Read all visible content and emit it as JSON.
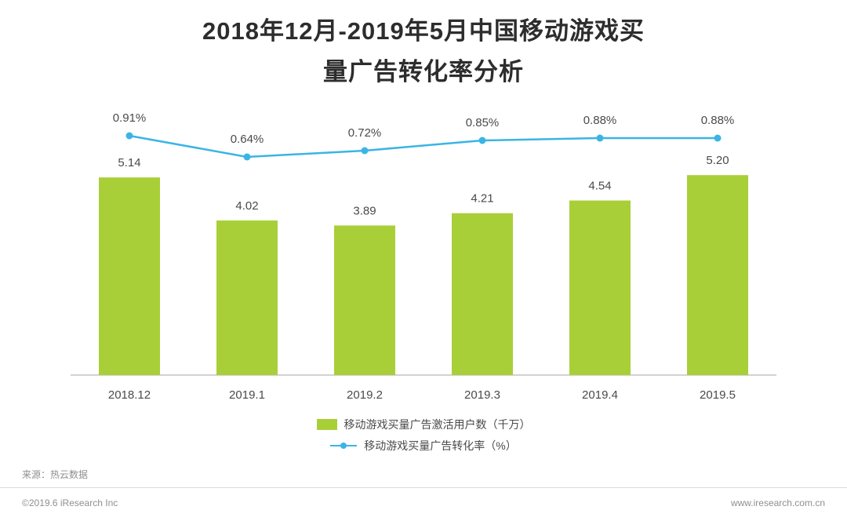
{
  "title": {
    "line1": "2018年12月-2019年5月中国移动游戏买",
    "line2": "量广告转化率分析"
  },
  "chart_data": {
    "type": "bar",
    "title": "2018年12月-2019年5月中国移动游戏买量广告转化率分析",
    "categories": [
      "2018.12",
      "2019.1",
      "2019.2",
      "2019.3",
      "2019.4",
      "2019.5"
    ],
    "series": [
      {
        "name": "移动游戏买量广告激活用户数（千万）",
        "type": "bar",
        "values": [
          5.14,
          4.02,
          3.89,
          4.21,
          4.54,
          5.2
        ],
        "labels": [
          "5.14",
          "4.02",
          "3.89",
          "4.21",
          "4.54",
          "5.20"
        ],
        "color": "#a9cf38"
      },
      {
        "name": "移动游戏买量广告转化率（%）",
        "type": "line",
        "values": [
          0.91,
          0.64,
          0.72,
          0.85,
          0.88,
          0.88
        ],
        "labels": [
          "0.91%",
          "0.64%",
          "0.72%",
          "0.85%",
          "0.88%",
          "0.88%"
        ],
        "color": "#3bb4e5"
      }
    ],
    "xlabel": "",
    "ylabel": "",
    "grid": false,
    "legend_position": "bottom"
  },
  "legend": {
    "bar_label": "移动游戏买量广告激活用户数（千万）",
    "line_label": "移动游戏买量广告转化率（%）"
  },
  "footer": {
    "source": "来源：热云数据",
    "copyright": "©2019.6 iResearch Inc",
    "website": "www.iresearch.com.cn"
  },
  "colors": {
    "bar": "#a9cf38",
    "line": "#3bb4e5",
    "axis": "#a6a6a6",
    "label": "#4a4a4a",
    "footer_text": "#8f8f8f"
  }
}
